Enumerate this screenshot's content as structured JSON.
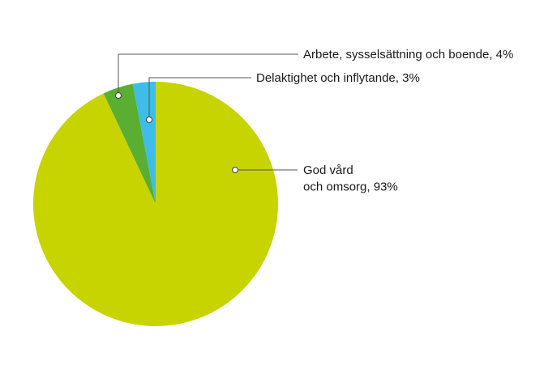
{
  "chart_data": {
    "type": "pie",
    "categories": [
      "God vård och omsorg",
      "Arbete, sysselsättning och boende",
      "Delaktighet och inflytande"
    ],
    "values": [
      93,
      4,
      3
    ],
    "slices": [
      {
        "key": "vard",
        "name": "God vård och omsorg",
        "value": 93,
        "color": "#c8d400",
        "label_lines": [
          "God vård",
          "och omsorg, 93%"
        ]
      },
      {
        "key": "arbete",
        "name": "Arbete, sysselsättning och boende",
        "value": 4,
        "color": "#5aae32",
        "label_lines": [
          "Arbete, sysselsättning och boende, 4%"
        ]
      },
      {
        "key": "delaktighet",
        "name": "Delaktighet och inflytande",
        "value": 3,
        "color": "#3fbde8",
        "label_lines": [
          "Delaktighet och inflytande, 3%"
        ]
      }
    ],
    "legend": "none",
    "grid": false
  }
}
